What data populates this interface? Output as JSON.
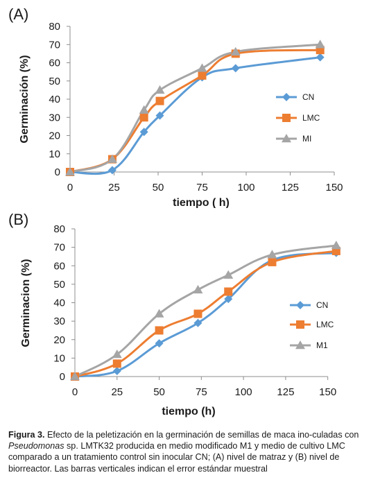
{
  "chart_data": [
    {
      "type": "line",
      "panel_label": "(A)",
      "xlabel": "tiempo ( h)",
      "ylabel": "Germinación (%)",
      "xlim": [
        0,
        150
      ],
      "ylim": [
        0,
        80
      ],
      "xticks": [
        0,
        25,
        50,
        75,
        100,
        125,
        150
      ],
      "yticks": [
        0,
        10,
        20,
        30,
        40,
        50,
        60,
        70,
        80
      ],
      "grid": false,
      "legend_position": "right",
      "series": [
        {
          "name": "CN",
          "color": "#5b9bd5",
          "marker": "diamond",
          "x": [
            0,
            24,
            42,
            51,
            75,
            94,
            142
          ],
          "y": [
            0,
            1,
            22,
            31,
            52,
            57,
            63
          ]
        },
        {
          "name": "LMC",
          "color": "#ed7d31",
          "marker": "square",
          "x": [
            0,
            24,
            42,
            51,
            75,
            94,
            142
          ],
          "y": [
            0,
            7,
            30,
            39,
            53,
            65,
            67
          ]
        },
        {
          "name": "MI",
          "color": "#a5a5a5",
          "marker": "triangle",
          "x": [
            0,
            24,
            42,
            51,
            75,
            94,
            142
          ],
          "y": [
            0,
            7,
            34,
            45,
            57,
            66,
            70
          ]
        }
      ]
    },
    {
      "type": "line",
      "panel_label": "(B)",
      "xlabel": "tiempo (h)",
      "ylabel": "Germinacion (%)",
      "xlim": [
        0,
        160
      ],
      "ylim": [
        0,
        80
      ],
      "xticks": [
        0,
        25,
        50,
        75,
        100,
        125,
        150
      ],
      "yticks": [
        0,
        10,
        20,
        30,
        40,
        50,
        60,
        70,
        80
      ],
      "grid": false,
      "legend_position": "right",
      "series": [
        {
          "name": "CN",
          "color": "#5b9bd5",
          "marker": "diamond",
          "x": [
            0,
            25,
            50,
            73,
            91,
            117,
            155
          ],
          "y": [
            0,
            3,
            18,
            29,
            42,
            63,
            67
          ]
        },
        {
          "name": "LMC",
          "color": "#ed7d31",
          "marker": "square",
          "x": [
            0,
            25,
            50,
            73,
            91,
            117,
            155
          ],
          "y": [
            0,
            7,
            25,
            34,
            46,
            62,
            68
          ]
        },
        {
          "name": "M1",
          "color": "#a5a5a5",
          "marker": "triangle",
          "x": [
            0,
            25,
            50,
            73,
            91,
            117,
            155
          ],
          "y": [
            0,
            12,
            34,
            47,
            55,
            66,
            71
          ]
        }
      ]
    }
  ],
  "caption": {
    "label": "Figura 3.",
    "text_1": " Efecto de la peletización en la germinación de semillas de maca ino-culadas con ",
    "italic": "Pseudomonas",
    "text_2": " sp. LMTK32 producida en medio modificado M1 y medio de cultivo LMC comparado a un tratamiento control sin inocular CN; (A) nivel de matraz y (B) nivel de biorreactor. Las barras verticales indican el error estándar muestral"
  }
}
